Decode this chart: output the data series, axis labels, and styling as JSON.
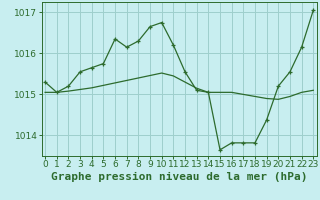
{
  "title": "Graphe pression niveau de la mer (hPa)",
  "background_color": "#c8eef0",
  "grid_color": "#9ecfcc",
  "line_color": "#2d6b2d",
  "x_ticks": [
    0,
    1,
    2,
    3,
    4,
    5,
    6,
    7,
    8,
    9,
    10,
    11,
    12,
    13,
    14,
    15,
    16,
    17,
    18,
    19,
    20,
    21,
    22,
    23
  ],
  "y_ticks": [
    1014,
    1015,
    1016,
    1017
  ],
  "ylim": [
    1013.5,
    1017.25
  ],
  "xlim": [
    -0.3,
    23.3
  ],
  "series1_x": [
    0,
    1,
    2,
    3,
    4,
    5,
    6,
    7,
    8,
    9,
    10,
    11,
    12,
    13,
    14,
    15,
    16,
    17,
    18,
    19,
    20,
    21,
    22,
    23
  ],
  "series1_y": [
    1015.3,
    1015.05,
    1015.2,
    1015.55,
    1015.65,
    1015.75,
    1016.35,
    1016.15,
    1016.3,
    1016.65,
    1016.75,
    1016.2,
    1015.55,
    1015.1,
    1015.05,
    1013.65,
    1013.82,
    1013.82,
    1013.82,
    1014.38,
    1015.2,
    1015.55,
    1016.15,
    1017.05
  ],
  "series2_x": [
    0,
    1,
    2,
    3,
    4,
    5,
    6,
    7,
    8,
    9,
    10,
    11,
    12,
    13,
    14,
    15,
    16,
    17,
    18,
    19,
    20,
    21,
    22,
    23
  ],
  "series2_y": [
    1015.05,
    1015.05,
    1015.08,
    1015.12,
    1015.16,
    1015.22,
    1015.28,
    1015.34,
    1015.4,
    1015.46,
    1015.52,
    1015.45,
    1015.3,
    1015.15,
    1015.05,
    1015.05,
    1015.05,
    1015.0,
    1014.95,
    1014.9,
    1014.88,
    1014.95,
    1015.05,
    1015.1
  ],
  "title_fontsize": 8,
  "tick_fontsize": 6.5
}
